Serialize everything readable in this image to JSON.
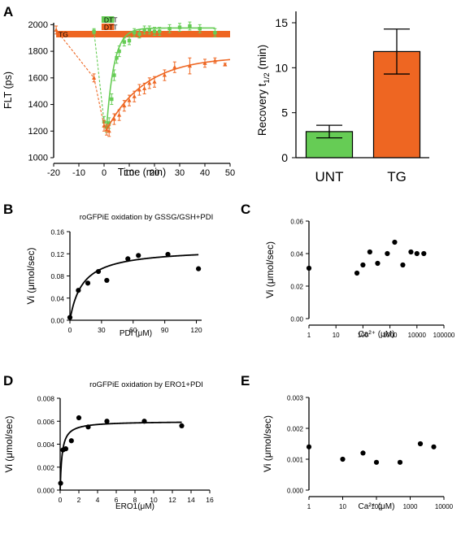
{
  "colors": {
    "green": "#66cc55",
    "orange": "#ee6622",
    "black": "#000000"
  },
  "chart_data": [
    {
      "panel": "A",
      "type": "line",
      "xlabel": "Time (min)",
      "ylabel": "FLT (ps)",
      "xlim": [
        -20,
        50
      ],
      "ylim": [
        1000,
        2100
      ],
      "xticks": [
        "-20",
        "-10",
        "0",
        "10",
        "20",
        "30",
        "40",
        "50"
      ],
      "yticks": [
        "1000",
        "1200",
        "1400",
        "1600",
        "1800",
        "2000"
      ],
      "bars": [
        {
          "label": "TG",
          "x": [
            -19,
            50
          ],
          "color": "#ee6622"
        },
        {
          "label": "DTT",
          "x": [
            -1,
            4
          ],
          "color": "#ee6622"
        },
        {
          "label": "DTT",
          "x": [
            -1,
            4
          ],
          "color": "#66cc55"
        }
      ],
      "series": [
        {
          "color": "#66cc55",
          "x": [
            -4,
            0,
            1,
            2,
            3,
            4,
            5,
            6,
            8,
            10,
            12,
            14,
            16,
            18,
            20,
            22,
            26,
            30,
            34,
            38,
            44
          ],
          "y": [
            1950,
            1270,
            1230,
            1260,
            1440,
            1620,
            1750,
            1800,
            1870,
            1880,
            1940,
            1930,
            1960,
            1960,
            1950,
            1950,
            1970,
            1980,
            1990,
            1970,
            1940
          ],
          "err": [
            20,
            40,
            40,
            40,
            40,
            40,
            40,
            40,
            30,
            30,
            30,
            30,
            30,
            30,
            30,
            30,
            30,
            30,
            30,
            30,
            30
          ]
        },
        {
          "color": "#ee6622",
          "x": [
            -19,
            -4,
            0,
            1,
            2,
            4,
            6,
            8,
            10,
            12,
            14,
            16,
            18,
            20,
            24,
            28,
            34,
            40,
            44,
            48
          ],
          "y": [
            1960,
            1600,
            1240,
            1210,
            1200,
            1290,
            1320,
            1390,
            1430,
            1460,
            1510,
            1520,
            1560,
            1570,
            1620,
            1680,
            1690,
            1710,
            1730,
            1700
          ],
          "err": [
            30,
            30,
            40,
            40,
            40,
            40,
            40,
            40,
            40,
            40,
            40,
            40,
            40,
            40,
            40,
            40,
            60,
            30,
            20,
            10
          ]
        }
      ]
    },
    {
      "panel": "A",
      "type": "bar",
      "categories": [
        "UNT",
        "TG"
      ],
      "values": [
        2.9,
        11.8
      ],
      "err": [
        0.7,
        2.5
      ],
      "colors": [
        "#66cc55",
        "#ee6622"
      ],
      "ylabel_main": "Recovery t",
      "ylabel_sub": "1/2",
      "ylabel_unit": " (min)",
      "ylim": [
        0,
        15
      ],
      "yticks": [
        "0",
        "5",
        "10",
        "15"
      ]
    },
    {
      "panel": "B",
      "type": "scatter",
      "title": "roGFPiE oxidation by GSSG/GSH+PDI",
      "xlabel": "PDI (μM)",
      "ylabel": "Vi (μmol/sec)",
      "xlim": [
        0,
        125
      ],
      "ylim": [
        0,
        0.16
      ],
      "xticks": [
        "0",
        "30",
        "60",
        "90",
        "120"
      ],
      "yticks": [
        "0.00",
        "0.04",
        "0.08",
        "0.12",
        "0.16"
      ],
      "x": [
        0,
        8,
        17,
        27,
        35,
        55,
        65,
        93,
        122
      ],
      "y": [
        0.005,
        0.054,
        0.067,
        0.088,
        0.072,
        0.111,
        0.117,
        0.119,
        0.093
      ],
      "fit": {
        "vmax": 0.13,
        "km": 12
      }
    },
    {
      "panel": "C",
      "type": "scatter",
      "xlabel": "Ca²⁺ (μM)",
      "ylabel": "Vi (μmol/sec)",
      "log_x": true,
      "xlim": [
        1,
        100000
      ],
      "ylim": [
        0,
        0.06
      ],
      "xticks": [
        "1",
        "10",
        "100",
        "1000",
        "10000",
        "100000"
      ],
      "yticks": [
        "0.00",
        "0.02",
        "0.04",
        "0.06"
      ],
      "x": [
        1,
        60,
        100,
        180,
        350,
        800,
        1500,
        3000,
        6000,
        10000,
        18000
      ],
      "y": [
        0.031,
        0.028,
        0.033,
        0.041,
        0.034,
        0.04,
        0.047,
        0.033,
        0.041,
        0.04,
        0.04
      ]
    },
    {
      "panel": "D",
      "type": "scatter",
      "title": "roGFPiE oxidation by ERO1+PDI",
      "xlabel": "ERO1(μM)",
      "ylabel": "Vi (μmol/sec)",
      "xlim": [
        0,
        16
      ],
      "ylim": [
        0,
        0.008
      ],
      "xticks": [
        "0",
        "2",
        "4",
        "6",
        "8",
        "10",
        "12",
        "14",
        "16"
      ],
      "yticks": [
        "0.000",
        "0.002",
        "0.004",
        "0.006",
        "0.008"
      ],
      "x": [
        0.05,
        0.3,
        0.6,
        1.2,
        2,
        3,
        5,
        9,
        13
      ],
      "y": [
        0.0006,
        0.0035,
        0.0036,
        0.0043,
        0.0063,
        0.0055,
        0.006,
        0.006,
        0.0056
      ],
      "fit": {
        "vmax": 0.006,
        "km": 0.2
      }
    },
    {
      "panel": "E",
      "type": "scatter",
      "xlabel": "Ca²⁺ (μM)",
      "ylabel": "Vi (μmol/sec)",
      "log_x": true,
      "xlim": [
        1,
        10000
      ],
      "ylim": [
        0,
        0.003
      ],
      "xticks": [
        "1",
        "10",
        "100",
        "1000",
        "10000"
      ],
      "yticks": [
        "0.000",
        "0.001",
        "0.002",
        "0.003"
      ],
      "x": [
        1,
        10,
        40,
        100,
        500,
        2000,
        5000
      ],
      "y": [
        0.0014,
        0.001,
        0.0012,
        0.0009,
        0.0009,
        0.0015,
        0.0014
      ]
    }
  ],
  "panel_labels": [
    "A",
    "B",
    "C",
    "D",
    "E"
  ]
}
